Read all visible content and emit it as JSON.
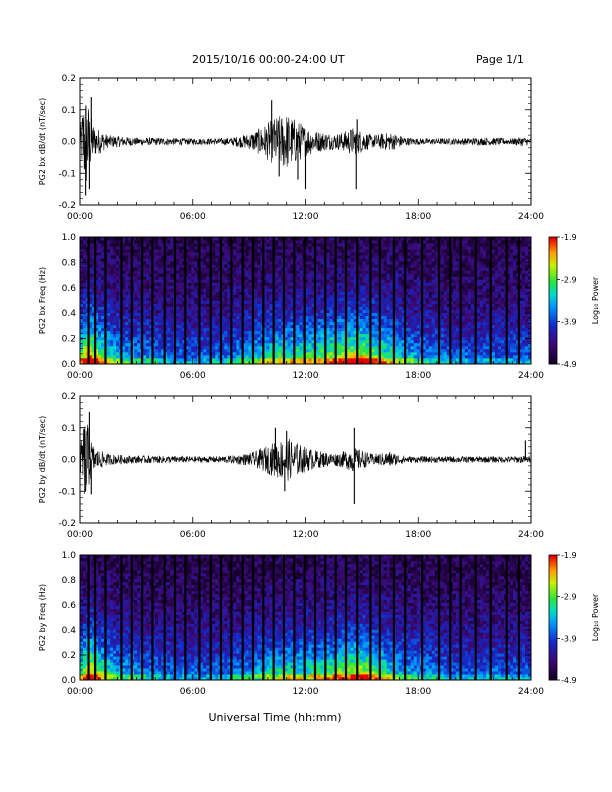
{
  "header": {
    "title": "2015/10/16  00:00-24:00 UT",
    "page": "Page 1/1"
  },
  "x_axis_label": "Universal Time (hh:mm)",
  "x_ticks": [
    "00:00",
    "06:00",
    "12:00",
    "18:00",
    "24:00"
  ],
  "chart_data": [
    {
      "type": "line",
      "ylabel": "PG2 bx dB/dt (nT/sec)",
      "xlim": [
        0,
        24
      ],
      "ylim": [
        -0.2,
        0.2
      ],
      "yticks": [
        "0.2",
        "0.1",
        "0.0",
        "-0.1",
        "-0.2"
      ],
      "envelope_hours": [
        0,
        0.2,
        0.35,
        0.5,
        0.75,
        1,
        1.5,
        2,
        3,
        4,
        5,
        6,
        7,
        8,
        9,
        9.5,
        10,
        10.5,
        11,
        11.5,
        12,
        12.5,
        13,
        13.5,
        14,
        14.5,
        15,
        15.5,
        16,
        16.5,
        17,
        17.5,
        18,
        19,
        20,
        21,
        22,
        23,
        23.5,
        24
      ],
      "envelope_amplitude": [
        0.03,
        0.14,
        0.16,
        0.1,
        0.05,
        0.04,
        0.02,
        0.018,
        0.012,
        0.012,
        0.011,
        0.01,
        0.01,
        0.012,
        0.025,
        0.04,
        0.06,
        0.08,
        0.09,
        0.07,
        0.05,
        0.035,
        0.03,
        0.025,
        0.03,
        0.045,
        0.035,
        0.02,
        0.025,
        0.03,
        0.02,
        0.012,
        0.01,
        0.01,
        0.01,
        0.012,
        0.012,
        0.01,
        0.015,
        0.01
      ],
      "spikes": [
        {
          "x": 0.3,
          "y": -0.17
        },
        {
          "x": 0.5,
          "y": -0.15
        },
        {
          "x": 0.6,
          "y": 0.14
        },
        {
          "x": 10.2,
          "y": 0.13
        },
        {
          "x": 10.6,
          "y": -0.11
        },
        {
          "x": 11.6,
          "y": -0.12
        },
        {
          "x": 12.0,
          "y": -0.15
        },
        {
          "x": 14.7,
          "y": -0.15
        },
        {
          "x": 14.75,
          "y": 0.07
        }
      ]
    },
    {
      "type": "heatmap",
      "ylabel": "PG2 bx Freq (Hz)",
      "xlim": [
        0,
        24
      ],
      "ylim": [
        0,
        1.0
      ],
      "yticks": [
        "1.0",
        "0.8",
        "0.6",
        "0.4",
        "0.2",
        "0.0"
      ],
      "colorbar": {
        "label": "Log₁₀ Power",
        "ticks": [
          "-1.9",
          "-2.9",
          "-3.9",
          "-4.9"
        ],
        "range": [
          -4.9,
          -1.9
        ]
      },
      "activity_hours": [
        0,
        0.5,
        1,
        2,
        3,
        4,
        5,
        6,
        7,
        8,
        9,
        10,
        11,
        12,
        13,
        14,
        15,
        16,
        17,
        18,
        19,
        20,
        21,
        22,
        23,
        24
      ],
      "activity_level": [
        0.6,
        0.95,
        0.7,
        0.45,
        0.4,
        0.35,
        0.3,
        0.3,
        0.3,
        0.35,
        0.45,
        0.55,
        0.6,
        0.6,
        0.65,
        0.75,
        0.8,
        0.65,
        0.5,
        0.4,
        0.35,
        0.3,
        0.3,
        0.3,
        0.3,
        0.3
      ],
      "gap_hours": [
        0.45,
        0.8,
        1.35,
        2.2,
        2.75,
        3.3,
        3.85,
        4.5,
        5.05,
        5.6,
        6.35,
        6.95,
        7.5,
        8.05,
        8.65,
        9.2,
        9.75,
        10.3,
        10.85,
        11.4,
        11.95,
        12.5,
        13.05,
        13.6,
        14.15,
        14.75,
        15.45,
        15.95,
        16.7,
        17.3,
        18.2,
        19.1,
        19.7,
        20.25,
        21.05,
        21.85,
        22.7,
        23.35
      ]
    },
    {
      "type": "line",
      "ylabel": "PG2 by dB/dt (nT/sec)",
      "xlim": [
        0,
        24
      ],
      "ylim": [
        -0.2,
        0.2
      ],
      "yticks": [
        "0.2",
        "0.1",
        "0.0",
        "-0.1",
        "-0.2"
      ],
      "envelope_hours": [
        0,
        0.2,
        0.35,
        0.5,
        0.75,
        1,
        1.5,
        2,
        3,
        4,
        5,
        6,
        7,
        8,
        9,
        9.5,
        10,
        10.5,
        11,
        11.5,
        12,
        12.5,
        13,
        13.5,
        14,
        14.5,
        15,
        15.5,
        16,
        16.5,
        17,
        17.5,
        18,
        19,
        20,
        21,
        22,
        23,
        23.5,
        24
      ],
      "envelope_amplitude": [
        0.03,
        0.12,
        0.13,
        0.08,
        0.04,
        0.03,
        0.018,
        0.015,
        0.012,
        0.012,
        0.011,
        0.01,
        0.01,
        0.012,
        0.02,
        0.03,
        0.045,
        0.06,
        0.07,
        0.055,
        0.04,
        0.03,
        0.025,
        0.02,
        0.025,
        0.04,
        0.03,
        0.018,
        0.02,
        0.025,
        0.015,
        0.01,
        0.01,
        0.01,
        0.01,
        0.01,
        0.01,
        0.01,
        0.012,
        0.01
      ],
      "spikes": [
        {
          "x": 0.3,
          "y": -0.1
        },
        {
          "x": 0.5,
          "y": 0.15
        },
        {
          "x": 0.6,
          "y": -0.11
        },
        {
          "x": 10.4,
          "y": 0.1
        },
        {
          "x": 11.0,
          "y": 0.09
        },
        {
          "x": 10.9,
          "y": -0.1
        },
        {
          "x": 14.6,
          "y": 0.1
        },
        {
          "x": 14.6,
          "y": -0.14
        },
        {
          "x": 23.7,
          "y": 0.06
        }
      ]
    },
    {
      "type": "heatmap",
      "ylabel": "PG2 by Freq (Hz)",
      "xlim": [
        0,
        24
      ],
      "ylim": [
        0,
        1.0
      ],
      "yticks": [
        "1.0",
        "0.8",
        "0.6",
        "0.4",
        "0.2",
        "0.0"
      ],
      "colorbar": {
        "label": "Log₁₀ Power",
        "ticks": [
          "-1.9",
          "-2.9",
          "-3.9",
          "-4.9"
        ],
        "range": [
          -4.9,
          -1.9
        ]
      },
      "activity_hours": [
        0,
        0.5,
        1,
        2,
        3,
        4,
        5,
        6,
        7,
        8,
        9,
        10,
        11,
        12,
        13,
        14,
        15,
        16,
        17,
        18,
        19,
        20,
        21,
        22,
        23,
        24
      ],
      "activity_level": [
        0.6,
        0.9,
        0.65,
        0.45,
        0.4,
        0.35,
        0.3,
        0.3,
        0.3,
        0.35,
        0.4,
        0.5,
        0.55,
        0.55,
        0.6,
        0.7,
        0.75,
        0.6,
        0.45,
        0.4,
        0.35,
        0.3,
        0.3,
        0.3,
        0.3,
        0.3
      ],
      "gap_hours": [
        0.45,
        0.8,
        1.35,
        2.2,
        2.75,
        3.3,
        3.85,
        4.5,
        5.05,
        5.6,
        6.35,
        6.95,
        7.5,
        8.05,
        8.65,
        9.2,
        9.75,
        10.3,
        10.85,
        11.4,
        11.95,
        12.5,
        13.05,
        13.6,
        14.15,
        14.75,
        15.45,
        15.95,
        16.7,
        17.3,
        18.2,
        19.1,
        19.7,
        20.25,
        21.05,
        21.85,
        22.7,
        23.35
      ]
    }
  ]
}
